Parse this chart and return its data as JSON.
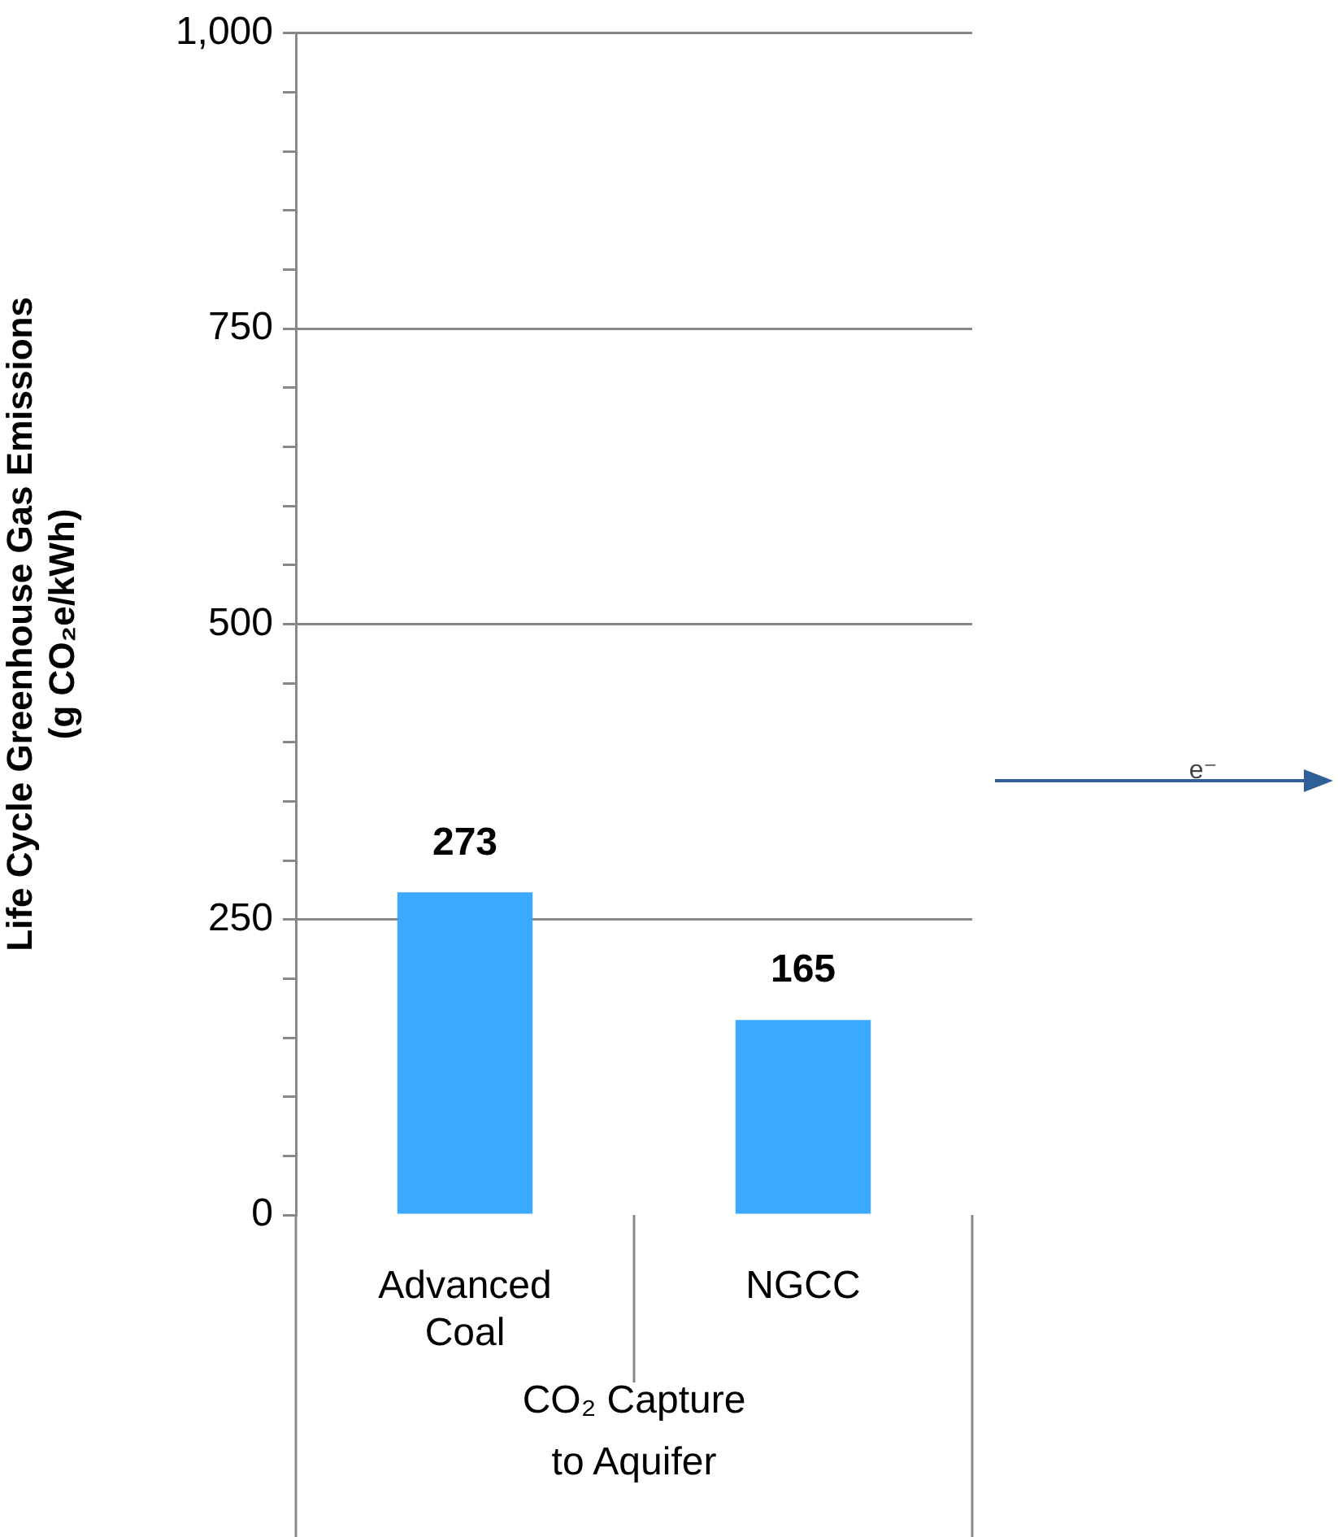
{
  "chart_data": {
    "type": "bar",
    "categories": [
      "Advanced\nCoal",
      "NGCC"
    ],
    "values": [
      273,
      165
    ],
    "color": "#3aa9ff",
    "xlabel": "CO₂ Capture\nto Aquifer",
    "ylabel": "Life Cycle Greenhouse Gas Emissions\n(g CO₂e/kWh)",
    "ylim": [
      0,
      1000
    ],
    "yticks": [
      0,
      {
        "value": 50,
        "label": null
      },
      {
        "value": 100,
        "label": null
      },
      {
        "value": 150,
        "label": null
      },
      {
        "value": 200,
        "label": null
      },
      250,
      {
        "value": 300,
        "label": null
      },
      {
        "value": 350,
        "label": null
      },
      {
        "value": 400,
        "label": null
      },
      {
        "value": 450,
        "label": null
      },
      500,
      {
        "value": 550,
        "label": null
      },
      {
        "value": 600,
        "label": null
      },
      {
        "value": 650,
        "label": null
      },
      {
        "value": 700,
        "label": null
      },
      750,
      {
        "value": 800,
        "label": null
      },
      {
        "value": 850,
        "label": null
      },
      {
        "value": 900,
        "label": null
      },
      {
        "value": 950,
        "label": null
      },
      {
        "value": 1000,
        "label": "1,000"
      }
    ],
    "grid": "y",
    "data_labels": true,
    "annotations": [
      "e⁻"
    ]
  }
}
